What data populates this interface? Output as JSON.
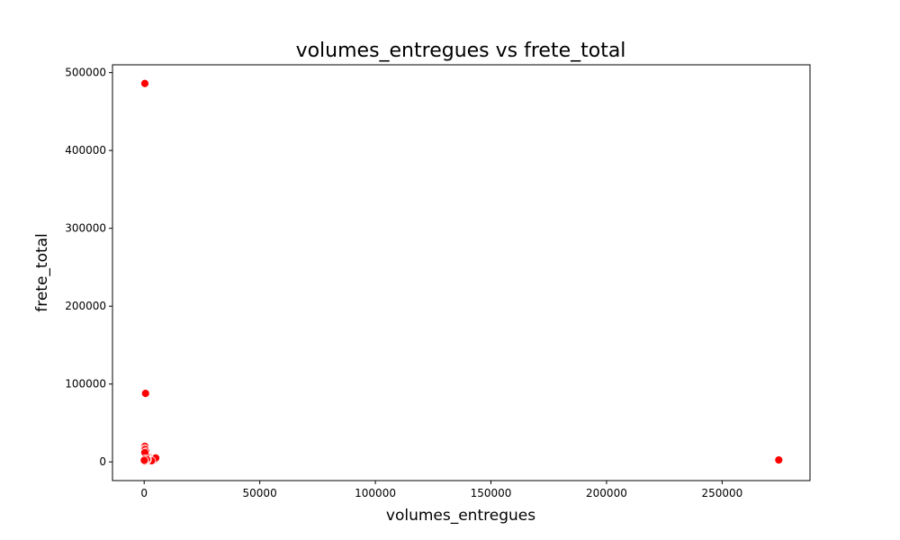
{
  "chart_data": {
    "type": "scatter",
    "title": "volumes_entregues vs frete_total",
    "xlabel": "volumes_entregues",
    "ylabel": "frete_total",
    "xlim": [
      -13700,
      288000
    ],
    "ylim": [
      -24000,
      510000
    ],
    "xticks": [
      0,
      50000,
      100000,
      150000,
      200000,
      250000
    ],
    "xtick_labels": [
      "0",
      "50000",
      "100000",
      "150000",
      "200000",
      "250000"
    ],
    "yticks": [
      0,
      100000,
      200000,
      300000,
      400000,
      500000
    ],
    "ytick_labels": [
      "0",
      "100000",
      "200000",
      "300000",
      "400000",
      "500000"
    ],
    "grid": false,
    "series": [
      {
        "color": "#ff0000",
        "marker_edge": "#ffffff",
        "x": [
          300,
          600,
          300,
          200,
          500,
          800,
          400,
          1000,
          1500,
          2000,
          2500,
          3000,
          3500,
          4000,
          4500,
          5000,
          1200,
          1800,
          2200,
          2800,
          3200,
          600,
          900,
          1400,
          700,
          300,
          1000,
          400,
          800,
          1100,
          0,
          100,
          200,
          50,
          274500
        ],
        "y": [
          486000,
          88000,
          20000,
          17000,
          16000,
          13000,
          11000,
          9000,
          8000,
          7000,
          6000,
          5000,
          4000,
          3500,
          3000,
          5000,
          4000,
          3000,
          2500,
          2000,
          1500,
          6000,
          5000,
          3000,
          9000,
          12000,
          2000,
          4000,
          1000,
          3000,
          0,
          500,
          1000,
          2000,
          2500
        ]
      }
    ]
  }
}
